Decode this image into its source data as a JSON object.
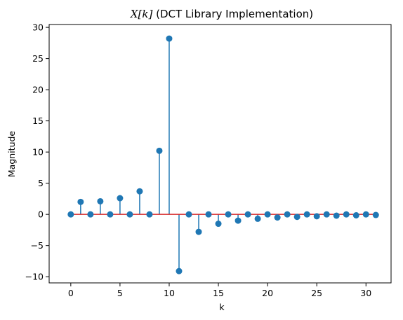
{
  "chart_data": {
    "type": "stem",
    "title_prefix": "X[k]",
    "title_suffix": " (DCT Library Implementation)",
    "xlabel": "k",
    "ylabel": "Magnitude",
    "xlim": [
      -2.2,
      32.55
    ],
    "ylim": [
      -10.99,
      30.46
    ],
    "xticks": [
      0,
      5,
      10,
      15,
      20,
      25,
      30
    ],
    "yticks": [
      -10,
      -5,
      0,
      5,
      10,
      15,
      20,
      25,
      30
    ],
    "k": [
      0,
      1,
      2,
      3,
      4,
      5,
      6,
      7,
      8,
      9,
      10,
      11,
      12,
      13,
      14,
      15,
      16,
      17,
      18,
      19,
      20,
      21,
      22,
      23,
      24,
      25,
      26,
      27,
      28,
      29,
      30,
      31
    ],
    "values": [
      0,
      2.0,
      0,
      2.1,
      0,
      2.6,
      0,
      3.7,
      0,
      10.2,
      28.2,
      -9.1,
      0,
      -2.8,
      0,
      -1.5,
      0,
      -1.0,
      0,
      -0.7,
      0,
      -0.5,
      0,
      -0.4,
      0,
      -0.3,
      0,
      -0.2,
      0,
      -0.15,
      0,
      -0.1
    ],
    "colors": {
      "stem": "#1f77b4",
      "marker": "#1f77b4",
      "baseline": "#d62728",
      "axis": "#000000"
    }
  }
}
